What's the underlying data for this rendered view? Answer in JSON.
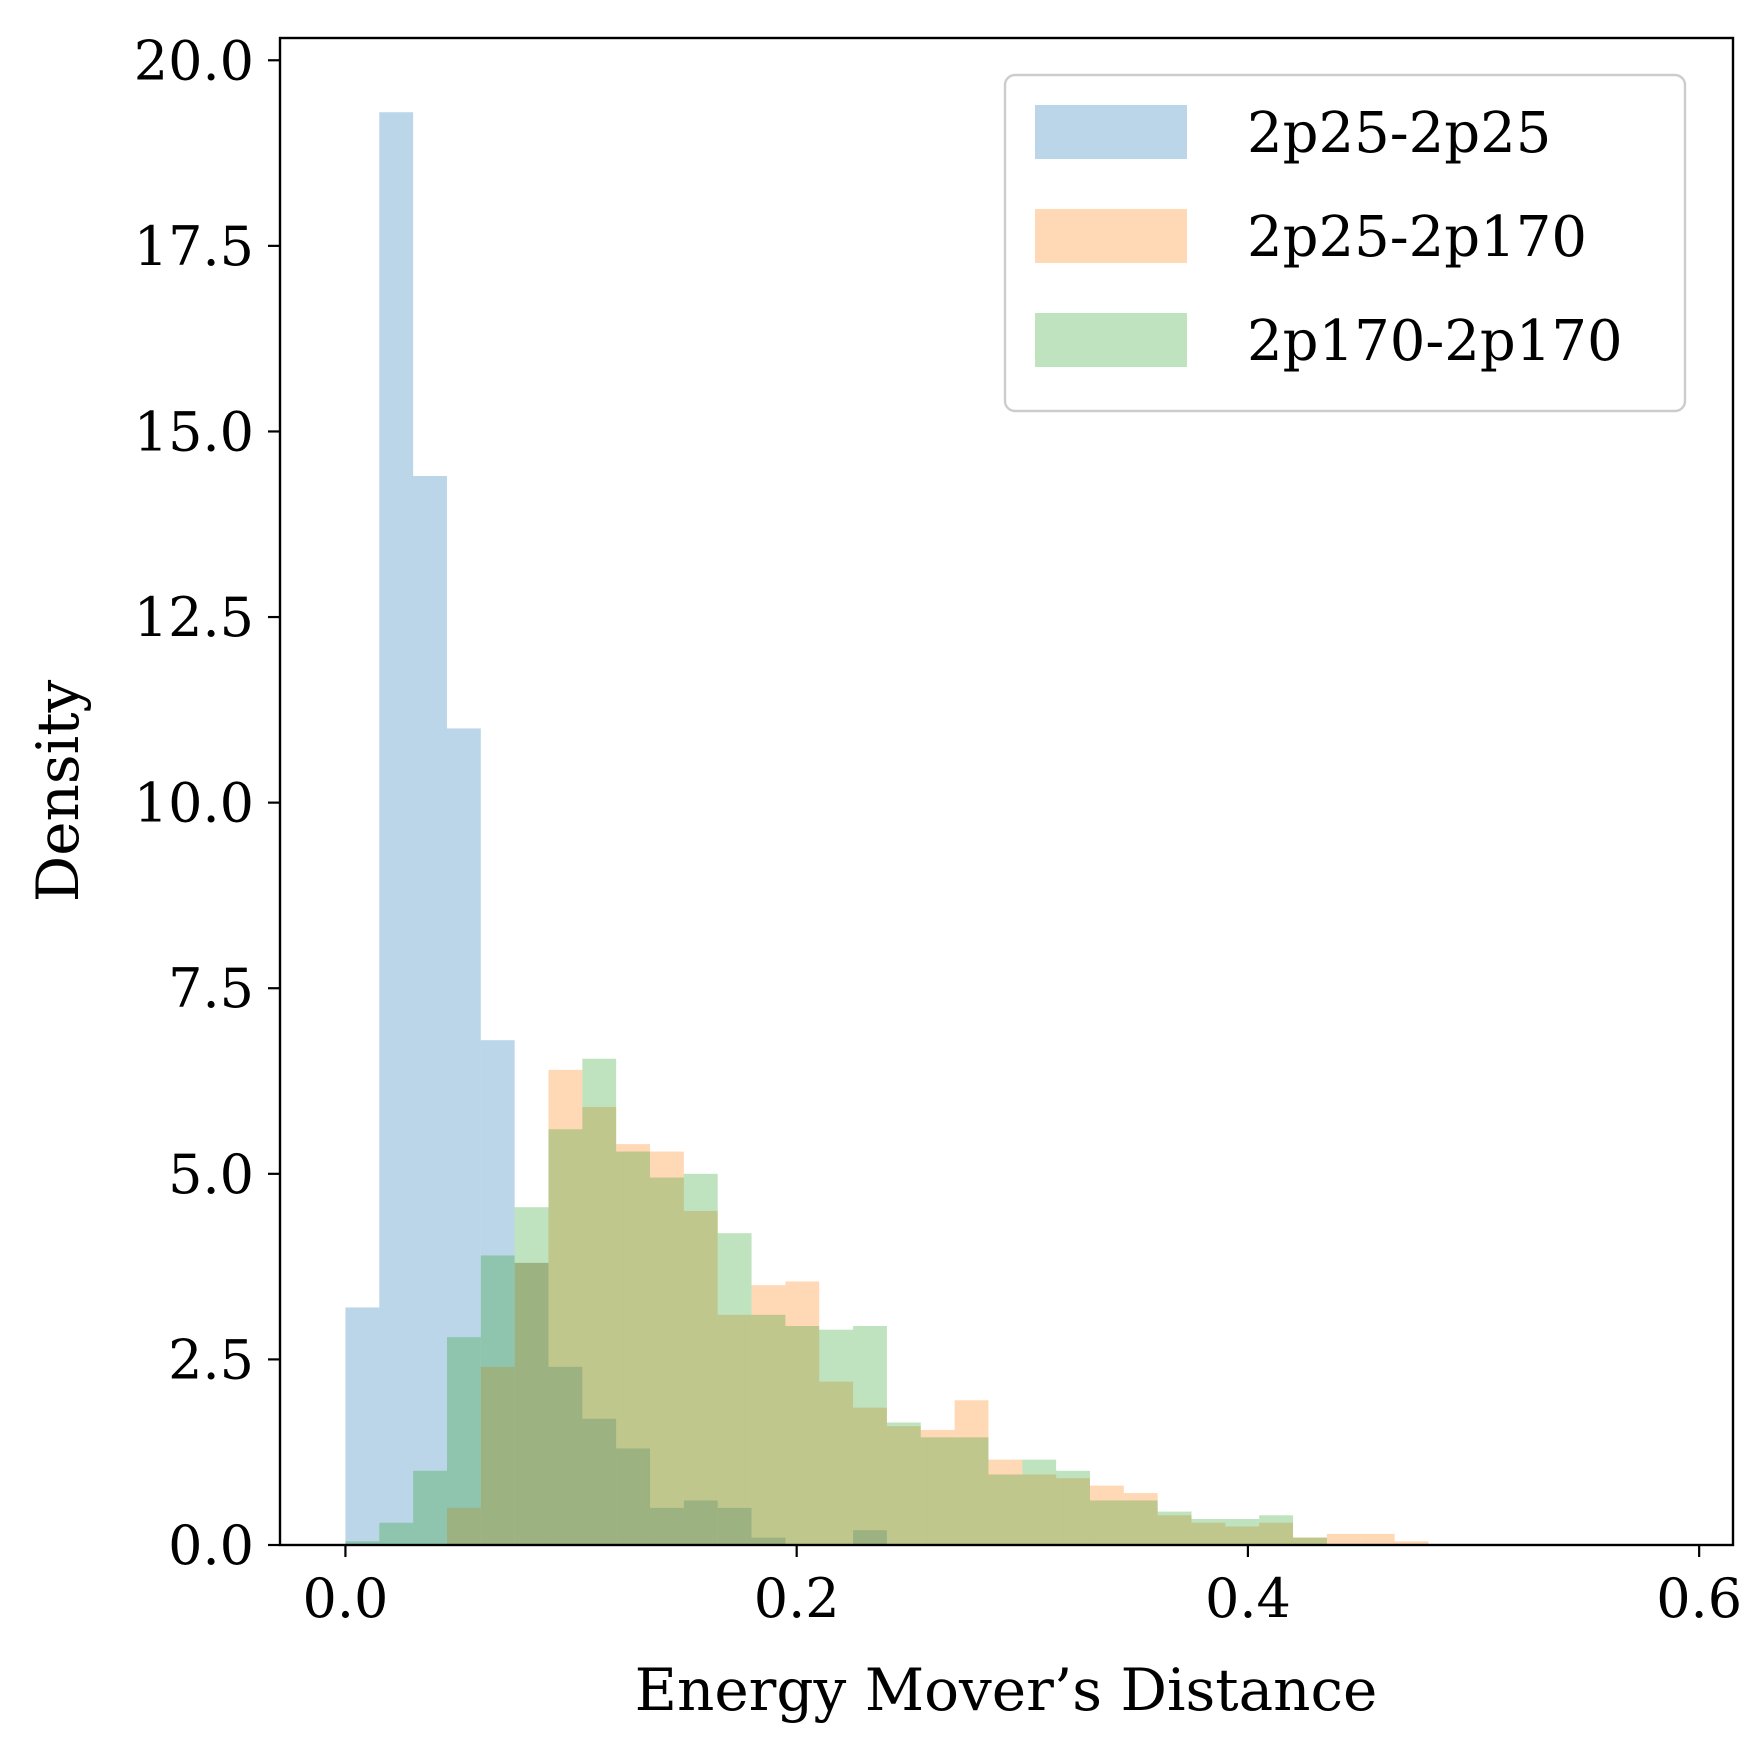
{
  "chart_data": {
    "type": "histogram",
    "xlabel": "Energy Mover’s Distance",
    "ylabel": "Density",
    "xlim": [
      -0.029,
      0.615
    ],
    "ylim": [
      0,
      20.3
    ],
    "x_ticks": [
      0.0,
      0.2,
      0.4,
      0.6
    ],
    "x_tick_labels": [
      "0.0",
      "0.2",
      "0.4",
      "0.6"
    ],
    "y_ticks": [
      0,
      2.5,
      5,
      7.5,
      10,
      12.5,
      15,
      17.5,
      20
    ],
    "y_tick_labels": [
      "0.0",
      "2.5",
      "5.0",
      "7.5",
      "10.0",
      "12.5",
      "15.0",
      "17.5",
      "20.0"
    ],
    "grid": false,
    "legend_position": "top-right",
    "series": [
      {
        "name": "2p25-2p25",
        "color": "#1f77b4",
        "alpha": 0.3,
        "bin_width": 0.015,
        "bin_starts": [
          0.0,
          0.015,
          0.03,
          0.045,
          0.06,
          0.075,
          0.09,
          0.105,
          0.12,
          0.135,
          0.15,
          0.165,
          0.18,
          0.195,
          0.21,
          0.225
        ],
        "values": [
          3.2,
          19.3,
          14.4,
          11.0,
          6.8,
          3.8,
          2.4,
          1.7,
          1.3,
          0.5,
          0.6,
          0.5,
          0.1,
          0.0,
          0.0,
          0.2
        ]
      },
      {
        "name": "2p25-2p170",
        "color": "#ff7f0e",
        "alpha": 0.3,
        "bin_width": 0.015,
        "bin_starts": [
          0.045,
          0.06,
          0.075,
          0.09,
          0.105,
          0.12,
          0.135,
          0.15,
          0.165,
          0.18,
          0.195,
          0.21,
          0.225,
          0.24,
          0.255,
          0.27,
          0.285,
          0.3,
          0.315,
          0.33,
          0.345,
          0.36,
          0.375,
          0.39,
          0.405,
          0.42,
          0.435,
          0.45,
          0.465
        ],
        "values": [
          0.5,
          2.4,
          3.8,
          6.4,
          5.9,
          5.4,
          5.3,
          4.5,
          3.1,
          3.5,
          3.55,
          2.2,
          1.85,
          1.6,
          1.55,
          1.95,
          1.15,
          0.95,
          0.9,
          0.8,
          0.7,
          0.4,
          0.3,
          0.25,
          0.3,
          0.1,
          0.15,
          0.15,
          0.05
        ]
      },
      {
        "name": "2p170-2p170",
        "color": "#2ca02c",
        "alpha": 0.3,
        "bin_width": 0.015,
        "bin_starts": [
          0.0,
          0.015,
          0.03,
          0.045,
          0.06,
          0.075,
          0.09,
          0.105,
          0.12,
          0.135,
          0.15,
          0.165,
          0.18,
          0.195,
          0.21,
          0.225,
          0.24,
          0.255,
          0.27,
          0.285,
          0.3,
          0.315,
          0.33,
          0.345,
          0.36,
          0.375,
          0.39,
          0.405,
          0.42
        ],
        "values": [
          0.05,
          0.3,
          1.0,
          2.8,
          3.9,
          4.55,
          5.6,
          6.55,
          5.3,
          4.95,
          5.0,
          4.2,
          3.1,
          2.95,
          2.9,
          2.95,
          1.65,
          1.45,
          1.45,
          0.95,
          1.15,
          1.0,
          0.6,
          0.6,
          0.45,
          0.35,
          0.35,
          0.4,
          0.1
        ]
      }
    ]
  }
}
